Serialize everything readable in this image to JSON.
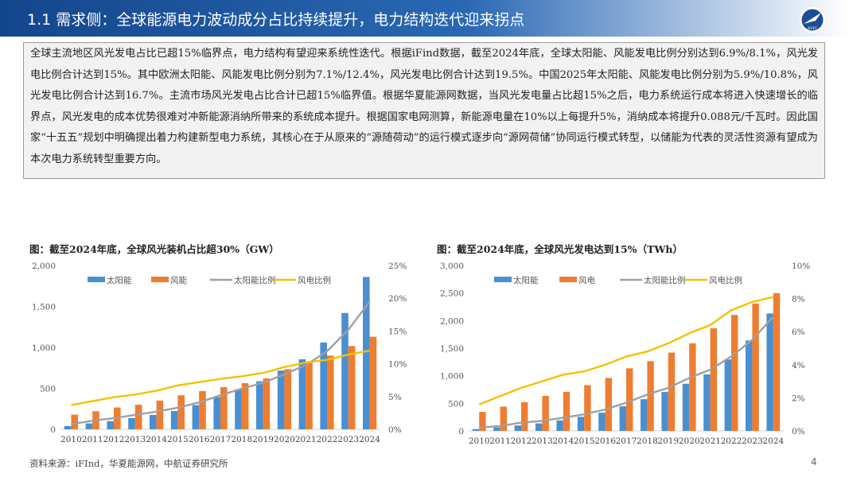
{
  "header": {
    "title": "1.1 需求侧：全球能源电力波动成分占比持续提升，电力结构迭代迎来拐点",
    "logo_text": "AVIC"
  },
  "summary_text": "全球主流地区风光发电占比已超15%临界点，电力结构有望迎来系统性迭代。根据iFind数据，截至2024年底，全球太阳能、风能发电比例分别达到6.9%/8.1%，风光发电比例合计达到15%。其中欧洲太阳能、风能发电比例分别为7.1%/12.4%，风光发电比例合计达到19.5%。中国2025年太阳能、风能发电比例分别为5.9%/10.8%，风光发电比例合计达到16.7%。主流市场风光发电占比合计已超15%临界值。根据华夏能源网数据，当风光发电量占比超15%之后，电力系统运行成本将进入快速增长的临界点，风光发电的成本优势很难对冲新能源消纳所带来的系统成本提升。根据国家电网测算，新能源电量在10%以上每提升5%，消纳成本将提升0.088元/千瓦时。因此国家“十五五”规划中明确提出着力构建新型电力系统，其核心在于从原来的“源随荷动”的运行模式逐步向“源网荷储”协同运行模式转型，以储能为代表的灵活性资源有望成为本次电力系统转型重要方向。",
  "footer": {
    "source": "资料来源：iFInd，华夏能源网，中航证券研究所",
    "page": "4"
  },
  "colors": {
    "solar_bar": "#4a8fd0",
    "wind_bar": "#ee7d31",
    "solar_line": "#a0a0a0",
    "wind_line": "#f6c100"
  },
  "chart_data": [
    {
      "type": "bar",
      "title": "图：截至2024年底，全球风光装机占比超30%（GW）",
      "categories": [
        "2010",
        "2011",
        "2012",
        "2013",
        "2014",
        "2015",
        "2016",
        "2017",
        "2018",
        "2019",
        "2020",
        "2021",
        "2022",
        "2023",
        "2024"
      ],
      "ylim": [
        0,
        2000
      ],
      "yticks": [
        "0",
        "500",
        "1,000",
        "1,500",
        "2,000"
      ],
      "y2lim": [
        0,
        25
      ],
      "y2ticks": [
        "0%",
        "5%",
        "10%",
        "15%",
        "20%",
        "25%"
      ],
      "legend": [
        "太阳能",
        "风能",
        "太阳能比例",
        "风电比例"
      ],
      "series": [
        {
          "name": "太阳能",
          "kind": "bar",
          "axis": "left",
          "values": [
            40,
            72,
            100,
            137,
            176,
            223,
            295,
            392,
            487,
            586,
            717,
            855,
            1060,
            1420,
            1860
          ]
        },
        {
          "name": "风能",
          "kind": "bar",
          "axis": "left",
          "values": [
            180,
            220,
            266,
            300,
            350,
            415,
            467,
            515,
            564,
            622,
            733,
            825,
            900,
            1017,
            1130
          ]
        },
        {
          "name": "太阳能比例",
          "kind": "line",
          "axis": "right",
          "values": [
            0.8,
            1.3,
            1.7,
            2.2,
            2.7,
            3.3,
            4.1,
            5.2,
            6.2,
            7.1,
            8.4,
            9.8,
            11.9,
            15.2,
            19.5
          ]
        },
        {
          "name": "风电比例",
          "kind": "line",
          "axis": "right",
          "values": [
            3.7,
            4.3,
            4.9,
            5.3,
            5.9,
            6.7,
            7.2,
            7.7,
            8.1,
            8.6,
            9.5,
            10.2,
            10.6,
            11.4,
            12.0
          ]
        }
      ]
    },
    {
      "type": "bar",
      "title": "图：截至2024年底，全球风光发电达到15%（TWh）",
      "categories": [
        "2010",
        "2011",
        "2012",
        "2013",
        "2014",
        "2015",
        "2016",
        "2017",
        "2018",
        "2019",
        "2020",
        "2021",
        "2022",
        "2023",
        "2024"
      ],
      "ylim": [
        0,
        3000
      ],
      "yticks": [
        "0",
        "500",
        "1,000",
        "1,500",
        "2,000",
        "2,500",
        "3,000"
      ],
      "y2lim": [
        0,
        10
      ],
      "y2ticks": [
        "0%",
        "2%",
        "4%",
        "6%",
        "8%",
        "10%"
      ],
      "legend": [
        "太阳能",
        "风电",
        "太阳能比例",
        "风电比例"
      ],
      "series": [
        {
          "name": "太阳能",
          "kind": "bar",
          "axis": "left",
          "values": [
            32,
            64,
            100,
            135,
            190,
            255,
            330,
            445,
            575,
            705,
            855,
            1025,
            1295,
            1640,
            2130
          ]
        },
        {
          "name": "风电",
          "kind": "bar",
          "axis": "left",
          "values": [
            345,
            440,
            520,
            635,
            710,
            830,
            960,
            1135,
            1265,
            1420,
            1590,
            1860,
            2105,
            2310,
            2500
          ]
        },
        {
          "name": "太阳能比例",
          "kind": "line",
          "axis": "right",
          "values": [
            0.2,
            0.3,
            0.5,
            0.6,
            0.8,
            1.0,
            1.3,
            1.7,
            2.2,
            2.6,
            3.2,
            3.7,
            4.5,
            5.5,
            6.9
          ]
        },
        {
          "name": "风电比例",
          "kind": "line",
          "axis": "right",
          "values": [
            1.6,
            2.1,
            2.6,
            3.0,
            3.4,
            3.6,
            4.0,
            4.5,
            4.8,
            5.3,
            5.9,
            6.4,
            7.3,
            7.8,
            8.1
          ]
        }
      ]
    }
  ]
}
